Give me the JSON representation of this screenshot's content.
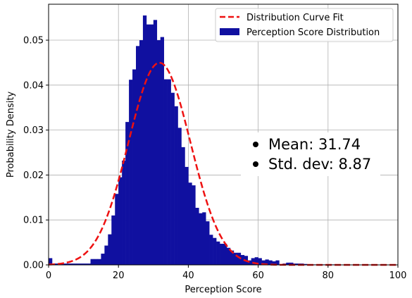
{
  "chart_data": {
    "type": "bar",
    "title": "",
    "xlabel": "Perception Score",
    "ylabel": "Probability Density",
    "xlim": [
      0,
      100
    ],
    "ylim": [
      0,
      0.058
    ],
    "x_ticks": [
      "0",
      "20",
      "40",
      "60",
      "80",
      "100"
    ],
    "y_ticks": [
      "0.00",
      "0.01",
      "0.02",
      "0.03",
      "0.04",
      "0.05"
    ],
    "grid": true,
    "legend_position": "top-right",
    "colors": {
      "bars": "#1010a0",
      "curve": "#ee1111"
    },
    "series": [
      {
        "name": "Perception Score Distribution",
        "kind": "histogram",
        "bin_width": 1,
        "bin_starts": [
          0,
          1,
          2,
          3,
          4,
          5,
          6,
          7,
          8,
          9,
          10,
          11,
          12,
          13,
          14,
          15,
          16,
          17,
          18,
          19,
          20,
          21,
          22,
          23,
          24,
          25,
          26,
          27,
          28,
          29,
          30,
          31,
          32,
          33,
          34,
          35,
          36,
          37,
          38,
          39,
          40,
          41,
          42,
          43,
          44,
          45,
          46,
          47,
          48,
          49,
          50,
          51,
          52,
          53,
          54,
          55,
          56,
          57,
          58,
          59,
          60,
          61,
          62,
          63,
          64,
          65,
          66,
          67,
          68,
          69,
          70,
          71,
          72,
          73,
          74,
          75,
          76,
          77,
          78,
          79,
          80,
          81,
          82,
          83,
          84,
          85,
          86,
          87,
          88,
          89,
          90,
          91,
          92,
          93,
          94,
          95,
          96,
          97,
          98,
          99
        ],
        "values": [
          0.0015,
          0.0003,
          0.0003,
          0.0003,
          0.0003,
          0.0003,
          0.0003,
          0.0003,
          0.0003,
          0.0003,
          0.0003,
          0.0003,
          0.0013,
          0.0013,
          0.0013,
          0.0025,
          0.0043,
          0.0068,
          0.011,
          0.0158,
          0.0195,
          0.0232,
          0.0318,
          0.0412,
          0.0435,
          0.0487,
          0.05,
          0.0555,
          0.0535,
          0.0535,
          0.0545,
          0.05,
          0.0507,
          0.0413,
          0.0413,
          0.0383,
          0.0353,
          0.0305,
          0.0262,
          0.0218,
          0.0183,
          0.0177,
          0.0127,
          0.0115,
          0.0117,
          0.0097,
          0.0067,
          0.006,
          0.0052,
          0.0047,
          0.0047,
          0.0038,
          0.0032,
          0.0027,
          0.0027,
          0.0022,
          0.002,
          0.001,
          0.0015,
          0.0017,
          0.0015,
          0.001,
          0.0012,
          0.001,
          0.0008,
          0.001,
          0.0,
          0.0003,
          0.0005,
          0.0005,
          0.0003,
          0.0003,
          0.0003,
          0.0002,
          0.0001,
          0.0001,
          0.0001,
          0.0001,
          0.0001,
          0.0001,
          0.0001,
          0.0001,
          0.0,
          0.0,
          0.0,
          0.0,
          0.0,
          0.0,
          0.0,
          0.0,
          0.0,
          0.0,
          0.0,
          0.0,
          0.0,
          0.0,
          0.0,
          0.0,
          0.0,
          0.0
        ]
      },
      {
        "name": "Distribution Curve Fit",
        "kind": "normal_pdf",
        "mean": 31.74,
        "std": 8.87
      }
    ],
    "annotations": [
      "Mean: 31.74",
      "Std. dev: 8.87"
    ]
  }
}
